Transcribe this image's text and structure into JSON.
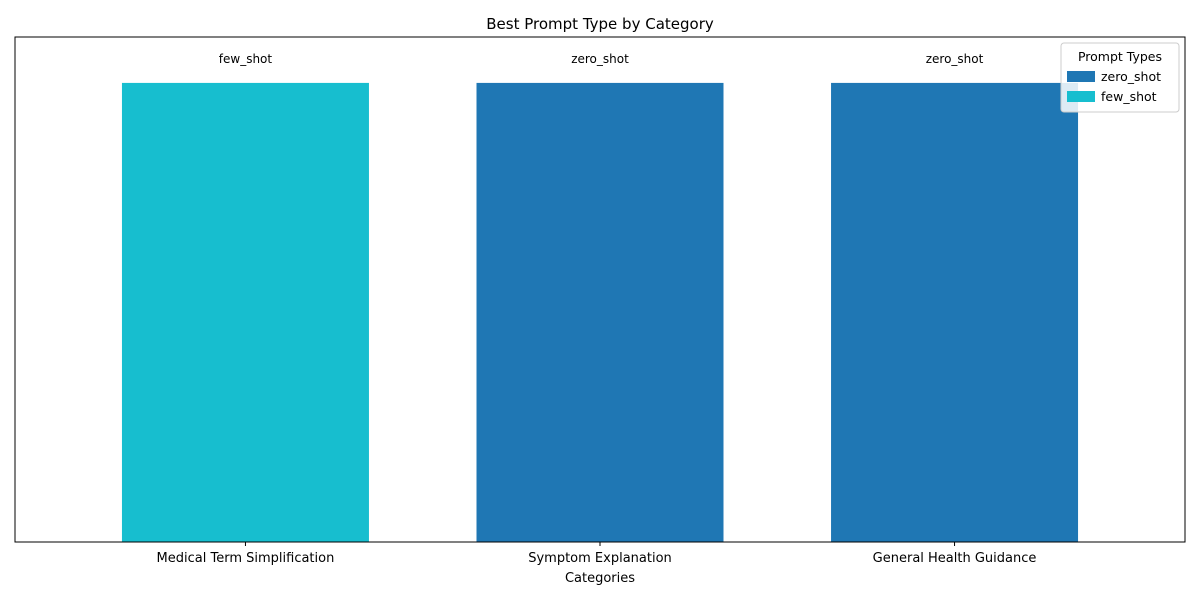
{
  "chart_data": {
    "type": "bar",
    "title": "Best Prompt Type by Category",
    "xlabel": "Categories",
    "ylabel": "",
    "categories": [
      "Medical Term Simplification",
      "Symptom Explanation",
      "General Health Guidance"
    ],
    "values": [
      1,
      1,
      1
    ],
    "bar_labels": [
      "few_shot",
      "zero_shot",
      "zero_shot"
    ],
    "ylim": [
      0,
      1.1
    ],
    "y_ticks_visible": false,
    "grid": false,
    "legend": {
      "title": "Prompt Types",
      "position": "top-right",
      "entries": [
        {
          "label": "zero_shot",
          "color": "#1f77b4"
        },
        {
          "label": "few_shot",
          "color": "#17becf"
        }
      ]
    }
  }
}
